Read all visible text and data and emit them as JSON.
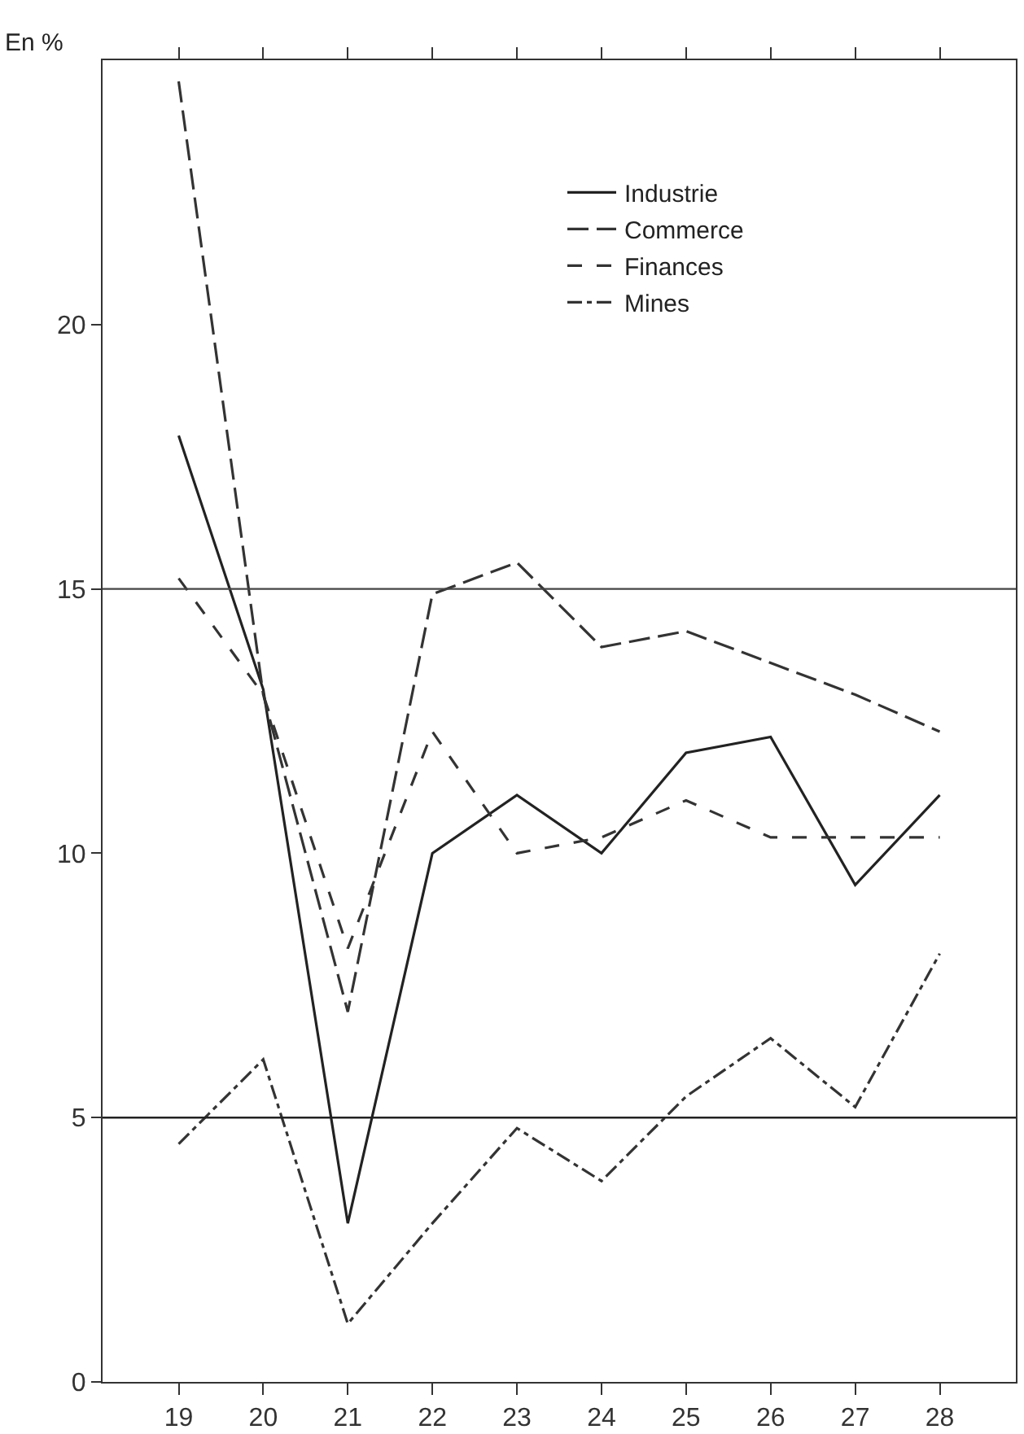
{
  "chart_data": {
    "type": "line",
    "ylabel": "En %",
    "x": [
      19,
      20,
      21,
      22,
      23,
      24,
      25,
      26,
      27,
      28
    ],
    "xlim": [
      18.1,
      28.9
    ],
    "xticks": [
      19,
      20,
      21,
      22,
      23,
      24,
      25,
      26,
      27,
      28
    ],
    "ylim": [
      0,
      25
    ],
    "yticks": [
      0,
      5,
      10,
      15,
      20
    ],
    "grid": false,
    "legend": "top right",
    "marker": "none",
    "ref_lines": [
      {
        "axis": "y",
        "value": 5,
        "color": "#222222"
      },
      {
        "axis": "y",
        "value": 15,
        "color": "#444444"
      }
    ],
    "series": [
      {
        "name": "Industrie",
        "color": "#222222",
        "line_style": "solid",
        "values": [
          17.9,
          13.1,
          3.0,
          10.0,
          11.1,
          10.0,
          11.9,
          12.2,
          9.4,
          11.1
        ]
      },
      {
        "name": "Commerce",
        "color": "#333333",
        "line_style": "longdash",
        "values": [
          24.6,
          13.0,
          7.0,
          14.9,
          15.5,
          13.9,
          14.2,
          13.6,
          13.0,
          12.3
        ]
      },
      {
        "name": "Finances",
        "color": "#333333",
        "line_style": "dashed",
        "values": [
          15.2,
          13.0,
          8.2,
          12.3,
          10.0,
          10.3,
          11.0,
          10.3,
          10.3,
          10.3
        ]
      },
      {
        "name": "Mines",
        "color": "#333333",
        "line_style": "dashdot",
        "values": [
          4.5,
          6.1,
          1.1,
          3.0,
          4.8,
          3.8,
          5.4,
          6.5,
          5.2,
          8.1
        ]
      }
    ]
  }
}
